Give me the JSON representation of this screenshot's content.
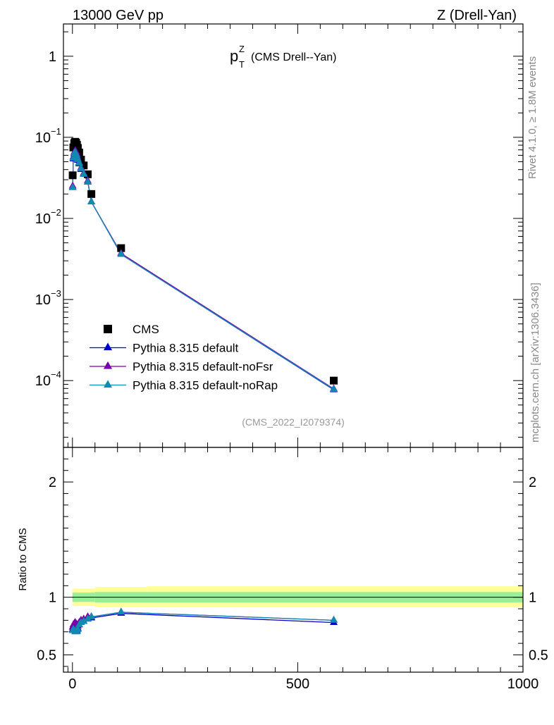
{
  "header": {
    "energy": "13000 GeV pp",
    "process": "Z (Drell-Yan)"
  },
  "side": {
    "rivet": "Rivet 4.1.0, ≥ 1.8M events",
    "source": "mcplots.cern.ch [arXiv:1306.3436]"
  },
  "chart_data": {
    "type": "scatter",
    "title_main": "p",
    "title_sup": "Z",
    "title_sub": "T",
    "title_rest": "(CMS Drell--Yan)",
    "watermark": "(CMS_2022_I2079374)",
    "yscale": "log",
    "ylim": [
      1.5e-05,
      2.5
    ],
    "xlim": [
      -20,
      1000
    ],
    "y_ticks": [
      {
        "value": 1,
        "label": "1",
        "type": "plain"
      },
      {
        "value": 0.1,
        "base": "10",
        "exp": "−1",
        "type": "pow"
      },
      {
        "value": 0.01,
        "base": "10",
        "exp": "−2",
        "type": "pow"
      },
      {
        "value": 0.001,
        "base": "10",
        "exp": "−3",
        "type": "pow"
      },
      {
        "value": 0.0001,
        "base": "10",
        "exp": "−4",
        "type": "pow"
      }
    ],
    "x_ticks": [
      0,
      500,
      1000
    ],
    "x_tick_labels": [
      "0",
      "500",
      "1000"
    ],
    "ratio": {
      "ylabel": "Ratio to CMS",
      "ylim": [
        0.35,
        2.3
      ],
      "ticks": [
        0.5,
        1,
        2
      ],
      "tick_labels": [
        "0.5",
        "1",
        "2"
      ],
      "band_inner": [
        {
          "x0": 0,
          "x1": 50,
          "lo": 0.96,
          "hi": 1.04
        },
        {
          "x0": 50,
          "x1": 1000,
          "lo": 0.955,
          "hi": 1.045
        }
      ],
      "band_outer": [
        {
          "x0": 0,
          "x1": 50,
          "lo": 0.925,
          "hi": 1.075
        },
        {
          "x0": 50,
          "x1": 165,
          "lo": 0.915,
          "hi": 1.09
        },
        {
          "x0": 165,
          "x1": 1000,
          "lo": 0.915,
          "hi": 1.095
        }
      ]
    },
    "legend": [
      "CMS",
      "Pythia 8.315 default",
      "Pythia 8.315 default-noFsr",
      "Pythia 8.315 default-noRap"
    ],
    "data": {
      "name": "CMS",
      "color": "#000000",
      "x": [
        0.5,
        2,
        4,
        6,
        8,
        10,
        12,
        15,
        19,
        25,
        34,
        42,
        108,
        580
      ],
      "y": [
        0.034,
        0.075,
        0.085,
        0.088,
        0.086,
        0.081,
        0.074,
        0.065,
        0.053,
        0.045,
        0.035,
        0.02,
        0.0043,
        0.0001
      ]
    },
    "series": [
      {
        "name": "Pythia 8.315 default",
        "color": "#0000cc",
        "x": [
          0.5,
          2,
          4,
          6,
          8,
          10,
          12,
          15,
          19,
          25,
          34,
          42,
          108,
          580
        ],
        "y": [
          0.024,
          0.054,
          0.062,
          0.064,
          0.061,
          0.057,
          0.052,
          0.047,
          0.04,
          0.035,
          0.028,
          0.016,
          0.0036,
          7.7e-05
        ],
        "ratio": [
          0.72,
          0.74,
          0.73,
          0.72,
          0.71,
          0.71,
          0.73,
          0.76,
          0.78,
          0.79,
          0.81,
          0.82,
          0.86,
          0.78
        ]
      },
      {
        "name": "Pythia 8.315 default-noFsr",
        "color": "#7700aa",
        "x": [
          0.5,
          2,
          4,
          6,
          8,
          10,
          12,
          15,
          19,
          25,
          34,
          42,
          108,
          580
        ],
        "y": [
          0.025,
          0.057,
          0.065,
          0.068,
          0.066,
          0.061,
          0.055,
          0.049,
          0.042,
          0.036,
          0.029,
          0.016,
          0.0037,
          7.9e-05
        ],
        "ratio": [
          0.74,
          0.76,
          0.77,
          0.78,
          0.77,
          0.76,
          0.75,
          0.78,
          0.8,
          0.81,
          0.83,
          0.83,
          0.87,
          0.8
        ]
      },
      {
        "name": "Pythia 8.315 default-noRap",
        "color": "#118ab2",
        "x": [
          0.5,
          2,
          4,
          6,
          8,
          10,
          12,
          15,
          19,
          25,
          34,
          42,
          108,
          580
        ],
        "y": [
          0.024,
          0.055,
          0.063,
          0.065,
          0.062,
          0.058,
          0.053,
          0.048,
          0.041,
          0.035,
          0.028,
          0.016,
          0.0036,
          7.8e-05
        ],
        "ratio": [
          0.71,
          0.72,
          0.71,
          0.7,
          0.7,
          0.7,
          0.72,
          0.76,
          0.78,
          0.79,
          0.81,
          0.83,
          0.87,
          0.8
        ]
      }
    ]
  }
}
